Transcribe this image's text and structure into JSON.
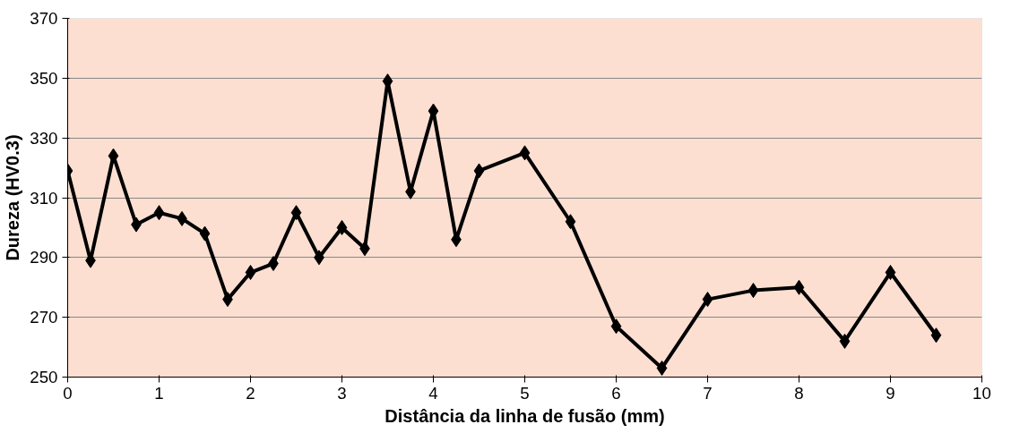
{
  "chart_data": {
    "type": "line",
    "xlabel": "Distância da linha de fusão (mm)",
    "ylabel": "Dureza (HV0.3)",
    "x": [
      0,
      0.25,
      0.5,
      0.75,
      1,
      1.25,
      1.5,
      1.75,
      2,
      2.25,
      2.5,
      2.75,
      3,
      3.25,
      3.5,
      3.75,
      4,
      4.25,
      4.5,
      5,
      5.5,
      6,
      6.5,
      7,
      7.5,
      8,
      8.5,
      9,
      9.5
    ],
    "series": [
      {
        "color": "#000000",
        "values": [
          319,
          289,
          324,
          301,
          305,
          303,
          298,
          276,
          285,
          288,
          305,
          290,
          300,
          293,
          349,
          312,
          339,
          296,
          319,
          325,
          302,
          267,
          253,
          276,
          279,
          280,
          262,
          285,
          264
        ]
      }
    ],
    "xlim": [
      0,
      10
    ],
    "xticks": [
      0,
      1,
      2,
      3,
      4,
      5,
      6,
      7,
      8,
      9,
      10
    ],
    "ylim": [
      250,
      370
    ],
    "yticks": [
      250,
      270,
      290,
      310,
      330,
      350,
      370
    ],
    "grid": "y",
    "marker": "diamond",
    "line_style": "solid"
  }
}
